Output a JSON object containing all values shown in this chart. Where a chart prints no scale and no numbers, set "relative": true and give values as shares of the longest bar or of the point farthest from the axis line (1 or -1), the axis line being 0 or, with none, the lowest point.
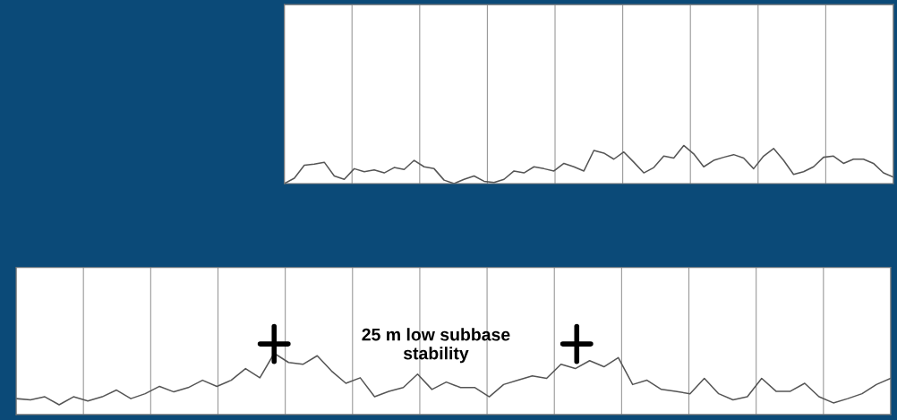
{
  "chart_data": [
    {
      "type": "line",
      "relative": true,
      "grid": "x",
      "categories": [
        null,
        null,
        null,
        null,
        null,
        null,
        null,
        null,
        null,
        null,
        null,
        null,
        null,
        null,
        null,
        null,
        null,
        null,
        null,
        null,
        null,
        null,
        null,
        null,
        null,
        null,
        null,
        null,
        null,
        null,
        null,
        null,
        null,
        null,
        null,
        null,
        null,
        null,
        null,
        null,
        null,
        null,
        null,
        null,
        null,
        null,
        null,
        null,
        null,
        null,
        null,
        null,
        null,
        null,
        null,
        null,
        null,
        null,
        null,
        null,
        null,
        null
      ],
      "series": [
        {
          "color": "#555555",
          "values": [
            0,
            0.14,
            0.48,
            0.51,
            0.56,
            0.2,
            0.11,
            0.39,
            0.31,
            0.36,
            0.28,
            0.42,
            0.37,
            0.61,
            0.44,
            0.39,
            0.09,
            0,
            0.11,
            0.2,
            0.06,
            0.03,
            0.11,
            0.33,
            0.28,
            0.44,
            0.39,
            0.33,
            0.53,
            0.44,
            0.33,
            0.87,
            0.8,
            0.64,
            0.83,
            0.56,
            0.28,
            0.42,
            0.72,
            0.67,
            1,
            0.78,
            0.44,
            0.61,
            0.69,
            0.76,
            0.67,
            0.39,
            0.72,
            0.92,
            0.61,
            0.24,
            0.31,
            0.44,
            0.69,
            0.72,
            0.53,
            0.64,
            0.64,
            0.53,
            0.28,
            0.17
          ]
        }
      ]
    },
    {
      "type": "line",
      "relative": true,
      "grid": "x",
      "categories": [
        null,
        null,
        null,
        null,
        null,
        null,
        null,
        null,
        null,
        null,
        null,
        null,
        null,
        null,
        null,
        null,
        null,
        null,
        null,
        null,
        null,
        null,
        null,
        null,
        null,
        null,
        null,
        null,
        null,
        null,
        null,
        null,
        null,
        null,
        null,
        null,
        null,
        null,
        null,
        null,
        null,
        null,
        null,
        null,
        null,
        null,
        null,
        null,
        null,
        null,
        null,
        null,
        null,
        null,
        null,
        null,
        null,
        null,
        null,
        null,
        null,
        null
      ],
      "annotations": [
        "25 m low subbase\nstability"
      ],
      "series": [
        {
          "color": "#555555",
          "values": [
            0.26,
            0.24,
            0.29,
            0.16,
            0.29,
            0.22,
            0.29,
            0.4,
            0.26,
            0.34,
            0.46,
            0.37,
            0.44,
            0.56,
            0.46,
            0.56,
            0.75,
            0.6,
            1,
            0.85,
            0.82,
            0.96,
            0.71,
            0.51,
            0.6,
            0.29,
            0.38,
            0.44,
            0.66,
            0.41,
            0.53,
            0.44,
            0.44,
            0.29,
            0.49,
            0.56,
            0.63,
            0.59,
            0.82,
            0.75,
            0.88,
            0.78,
            0.93,
            0.49,
            0.56,
            0.41,
            0.38,
            0.34,
            0.59,
            0.34,
            0.24,
            0.29,
            0.59,
            0.38,
            0.38,
            0.51,
            0.29,
            0.19,
            0.26,
            0.34,
            0.49,
            0.59
          ]
        }
      ]
    }
  ]
}
